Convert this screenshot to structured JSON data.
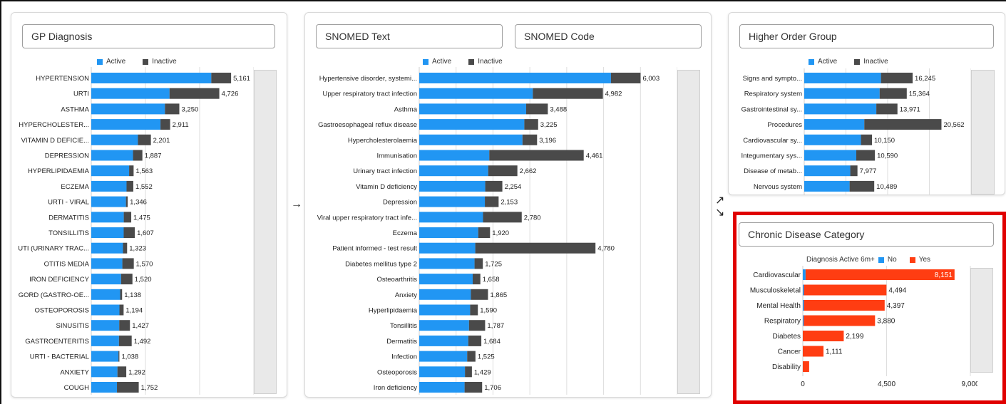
{
  "colors": {
    "active": "#2196f3",
    "inactive": "#4a4a4a",
    "yes": "#ff3d12",
    "no": "#2196f3",
    "highlight": "#e00000"
  },
  "arrows": {
    "forward": "→",
    "up_right": "↗",
    "down_right": "↘"
  },
  "gp_panel": {
    "field_label": "GP Diagnosis",
    "legend": {
      "active": "Active",
      "inactive": "Inactive"
    },
    "chart_data": {
      "type": "bar",
      "orientation": "horizontal-stacked",
      "categories": [
        "HYPERTENSION",
        "URTI",
        "ASTHMA",
        "HYPERCHOLESTER...",
        "VITAMIN D DEFICIE...",
        "DEPRESSION",
        "HYPERLIPIDAEMIA",
        "ECZEMA",
        "URTI - VIRAL",
        "DERMATITIS",
        "TONSILLITIS",
        "UTI (URINARY TRAC...",
        "OTITIS MEDIA",
        "IRON DEFICIENCY",
        "GORD (GASTRO-OE...",
        "OSTEOPOROSIS",
        "SINUSITIS",
        "GASTROENTERITIS",
        "URTI - BACTERIAL",
        "ANXIETY",
        "COUGH"
      ],
      "series": [
        {
          "name": "Active",
          "values": [
            4430,
            2888,
            2718,
            2555,
            1722,
            1541,
            1397,
            1302,
            1280,
            1200,
            1197,
            1170,
            1147,
            1100,
            1065,
            1040,
            1033,
            1022,
            1004,
            966,
            948
          ]
        },
        {
          "name": "Inactive",
          "values": [
            731,
            1838,
            532,
            356,
            479,
            346,
            166,
            250,
            66,
            275,
            410,
            153,
            423,
            420,
            73,
            154,
            394,
            470,
            34,
            326,
            804
          ]
        }
      ],
      "totals": [
        "5,161",
        "4,726",
        "3,250",
        "2,911",
        "2,201",
        "1,887",
        "1,563",
        "1,552",
        "1,346",
        "1,475",
        "1,607",
        "1,323",
        "1,570",
        "1,520",
        "1,138",
        "1,194",
        "1,427",
        "1,492",
        "1,038",
        "1,292",
        "1,752"
      ],
      "xlim": [
        0,
        6000
      ]
    }
  },
  "snomed_panel": {
    "text_label": "SNOMED Text",
    "code_label": "SNOMED Code",
    "legend": {
      "active": "Active",
      "inactive": "Inactive"
    },
    "chart_data": {
      "type": "bar",
      "orientation": "horizontal-stacked",
      "categories": [
        "Hypertensive disorder, systemi...",
        "Upper respiratory tract infection",
        "Asthma",
        "Gastroesophageal reflux disease",
        "Hypercholesterolaemia",
        "Immunisation",
        "Urinary tract infection",
        "Vitamin D deficiency",
        "Depression",
        "Viral upper respiratory tract infe...",
        "Eczema",
        "Patient informed - test result",
        "Diabetes mellitus type 2",
        "Osteoarthritis",
        "Anxiety",
        "Hyperlipidaemia",
        "Tonsillitis",
        "Dermatitis",
        "Infection",
        "Osteoporosis",
        "Iron deficiency"
      ],
      "series": [
        {
          "name": "Active",
          "values": [
            5200,
            3080,
            2900,
            2850,
            2800,
            1900,
            1870,
            1790,
            1780,
            1730,
            1600,
            1520,
            1500,
            1450,
            1400,
            1380,
            1350,
            1330,
            1300,
            1240,
            1230
          ]
        },
        {
          "name": "Inactive",
          "values": [
            803,
            1902,
            588,
            375,
            396,
            2561,
            792,
            464,
            373,
            1050,
            320,
            3260,
            225,
            208,
            465,
            210,
            437,
            354,
            225,
            189,
            476
          ]
        }
      ],
      "totals": [
        "6,003",
        "4,982",
        "3,488",
        "3,225",
        "3,196",
        "4,461",
        "2,662",
        "2,254",
        "2,153",
        "2,780",
        "1,920",
        "4,780",
        "1,725",
        "1,658",
        "1,865",
        "1,590",
        "1,787",
        "1,684",
        "1,525",
        "1,429",
        "1,706"
      ],
      "xlim": [
        0,
        7000
      ]
    }
  },
  "hog_panel": {
    "field_label": "Higher Order Group",
    "legend": {
      "active": "Active",
      "inactive": "Inactive"
    },
    "chart_data": {
      "type": "bar",
      "orientation": "horizontal-stacked",
      "categories": [
        "Signs and sympto...",
        "Respiratory system",
        "Gastrointestinal sy...",
        "Procedures",
        "Cardiovascular sy...",
        "Integumentary sys...",
        "Disease of metab...",
        "Nervous system"
      ],
      "series": [
        {
          "name": "Active",
          "values": [
            11500,
            11300,
            10800,
            9000,
            8500,
            7800,
            6900,
            6800
          ]
        },
        {
          "name": "Inactive",
          "values": [
            4745,
            4064,
            3171,
            11562,
            1650,
            2790,
            1077,
            3689
          ]
        }
      ],
      "totals": [
        "16,245",
        "15,364",
        "13,971",
        "20,562",
        "10,150",
        "10,590",
        "7,977",
        "10,489"
      ],
      "xlim": [
        0,
        25000
      ]
    }
  },
  "chronic_panel": {
    "field_label": "Chronic Disease Category",
    "legend": {
      "title": "Diagnosis Active 6m+",
      "no": "No",
      "yes": "Yes"
    },
    "chart_data": {
      "type": "bar",
      "orientation": "horizontal-stacked",
      "categories": [
        "Cardiovascular",
        "Musculoskeletal",
        "Mental Health",
        "Respiratory",
        "Diabetes",
        "Cancer",
        "Disability"
      ],
      "series": [
        {
          "name": "No",
          "values": [
            150,
            60,
            60,
            50,
            0,
            0,
            0
          ]
        },
        {
          "name": "Yes",
          "values": [
            8001,
            4434,
            4337,
            3830,
            2199,
            1111,
            340
          ]
        }
      ],
      "totals": [
        "8,151",
        "4,494",
        "4,397",
        "3,880",
        "2,199",
        "1,111",
        ""
      ],
      "xlim": [
        0,
        9000
      ],
      "xticks": [
        "0",
        "4,500",
        "9,000"
      ]
    }
  }
}
